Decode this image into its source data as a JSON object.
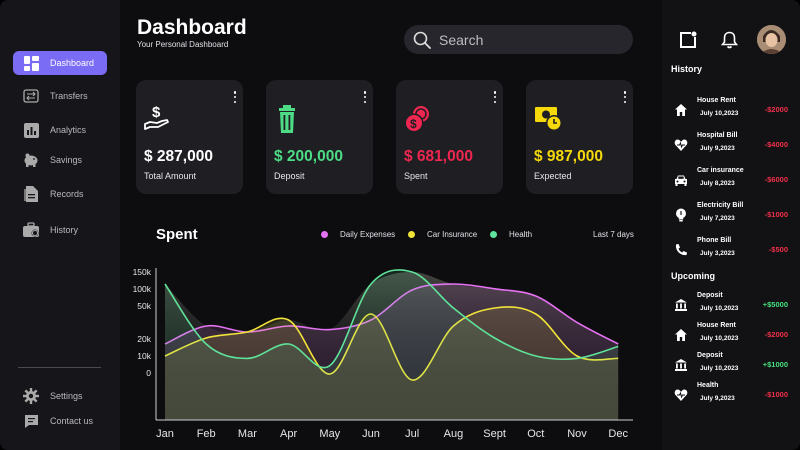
{
  "header": {
    "title": "Dashboard",
    "subtitle": "Your Personal Dashboard"
  },
  "search": {
    "placeholder": "Search",
    "icon": "search-icon"
  },
  "sidebar": {
    "items": [
      {
        "label": "Dashboard",
        "icon": "grid-icon",
        "active": true
      },
      {
        "label": "Transfers",
        "icon": "transfer-icon",
        "active": false
      },
      {
        "label": "Analytics",
        "icon": "bar-chart-icon",
        "active": false
      },
      {
        "label": "Savings",
        "icon": "piggy-bank-icon",
        "active": false
      },
      {
        "label": "Records",
        "icon": "records-icon",
        "active": false
      },
      {
        "label": "History",
        "icon": "briefcase-icon",
        "active": false
      }
    ],
    "bottom": [
      {
        "label": "Settings",
        "icon": "gear-icon"
      },
      {
        "label": "Contact us",
        "icon": "chat-icon"
      }
    ]
  },
  "cards": [
    {
      "amount": "$ 287,000",
      "label": "Total Amount",
      "color": "#ffffff",
      "icon": "hand-dollar-icon"
    },
    {
      "amount": "$ 200,000",
      "label": "Deposit",
      "color": "#4ddb86",
      "icon": "trash-bin-icon"
    },
    {
      "amount": "$ 681,000",
      "label": "Spent",
      "color": "#ef2750",
      "icon": "coins-icon"
    },
    {
      "amount": "$ 987,000",
      "label": "Expected",
      "color": "#f5d90a",
      "icon": "cash-clock-icon"
    }
  ],
  "chart": {
    "title": "Spent",
    "range_label": "Last 7 days"
  },
  "chart_data": {
    "type": "area",
    "x": [
      "Jan",
      "Feb",
      "Mar",
      "Apr",
      "May",
      "Jun",
      "Jul",
      "Aug",
      "Sept",
      "Oct",
      "Nov",
      "Dec"
    ],
    "yticks": [
      "150k",
      "100k",
      "50k",
      "20k",
      "10k",
      "0"
    ],
    "series": [
      {
        "name": "Daily Expenses",
        "color": "#e572f2",
        "values": [
          30,
          45,
          40,
          45,
          42,
          50,
          75,
          80,
          76,
          70,
          48,
          30
        ]
      },
      {
        "name": "Car Insurance",
        "color": "#f2e33a",
        "values": [
          20,
          35,
          40,
          50,
          5,
          55,
          0,
          45,
          60,
          55,
          20,
          18
        ]
      },
      {
        "name": "Health",
        "color": "#5fe39a",
        "values": [
          80,
          30,
          18,
          30,
          12,
          80,
          90,
          60,
          35,
          20,
          18,
          28
        ]
      }
    ],
    "ylim": [
      0,
      100
    ],
    "grid": false,
    "legend": "top"
  },
  "right_panel": {
    "history_title": "History",
    "history": [
      {
        "name": "House Rent",
        "date": "July 10,2023",
        "amount": "-$2000",
        "type": "neg",
        "icon": "home-icon"
      },
      {
        "name": "Hospital Bill",
        "date": "July 9,2023",
        "amount": "-$4000",
        "type": "neg",
        "icon": "heart-icon"
      },
      {
        "name": "Car insurance",
        "date": "July 8,2023",
        "amount": "-$6000",
        "type": "neg",
        "icon": "car-icon"
      },
      {
        "name": "Electricity Bill",
        "date": "July 7,2023",
        "amount": "-$1000",
        "type": "neg",
        "icon": "bulb-icon"
      },
      {
        "name": "Phone Bill",
        "date": "July 3,2023",
        "amount": "-$500",
        "type": "neg",
        "icon": "phone-icon"
      }
    ],
    "upcoming_title": "Upcoming",
    "upcoming": [
      {
        "name": "Deposit",
        "date": "July 10,2023",
        "amount": "+$5000",
        "type": "pos",
        "icon": "bank-icon"
      },
      {
        "name": "House Rent",
        "date": "July 10,2023",
        "amount": "-$2000",
        "type": "neg",
        "icon": "home-icon"
      },
      {
        "name": "Deposit",
        "date": "July 10,2023",
        "amount": "+$1000",
        "type": "pos",
        "icon": "bank-icon"
      },
      {
        "name": "Health",
        "date": "July 9,2023",
        "amount": "-$1000",
        "type": "neg",
        "icon": "heart-icon"
      }
    ]
  }
}
